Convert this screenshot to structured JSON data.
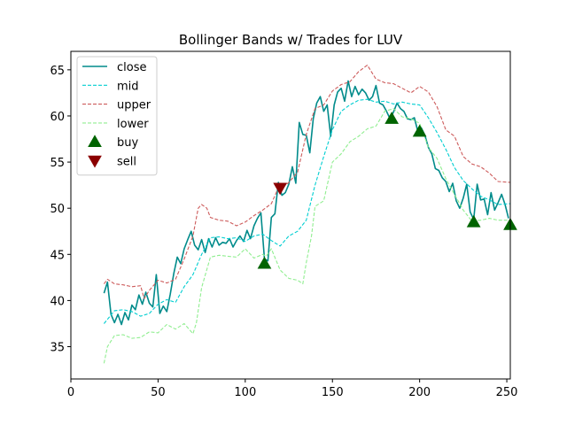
{
  "chart_data": {
    "type": "line",
    "title": "Bollinger Bands w/ Trades for LUV",
    "xlabel": "",
    "ylabel": "",
    "xlim": [
      0,
      252
    ],
    "ylim": [
      31.5,
      67
    ],
    "xticks": [
      0,
      50,
      100,
      150,
      200,
      250
    ],
    "yticks": [
      35,
      40,
      45,
      50,
      55,
      60,
      65
    ],
    "grid": false,
    "legend_position": "top-left",
    "series": [
      {
        "name": "close",
        "color": "#008b8b",
        "style": "solid",
        "x": [
          19,
          21,
          23,
          25,
          27,
          29,
          31,
          33,
          35,
          37,
          39,
          41,
          43,
          45,
          47,
          49,
          51,
          53,
          55,
          57,
          59,
          61,
          63,
          65,
          67,
          69,
          71,
          73,
          75,
          77,
          79,
          81,
          83,
          85,
          87,
          89,
          91,
          93,
          95,
          97,
          99,
          101,
          103,
          105,
          107,
          109,
          111,
          113,
          115,
          117,
          119,
          121,
          123,
          125,
          127,
          129,
          131,
          133,
          135,
          137,
          139,
          141,
          143,
          145,
          147,
          149,
          151,
          153,
          155,
          157,
          159,
          161,
          163,
          165,
          167,
          169,
          171,
          173,
          175,
          177,
          179,
          181,
          183,
          185,
          187,
          189,
          191,
          193,
          195,
          197,
          199,
          201,
          203,
          205,
          207,
          209,
          211,
          213,
          215,
          217,
          219,
          221,
          223,
          225,
          227,
          229,
          231,
          233,
          235,
          237,
          239,
          241,
          243,
          245,
          247,
          249,
          251
        ],
        "values": [
          40.8,
          42.0,
          38.5,
          37.6,
          38.5,
          37.4,
          38.7,
          37.9,
          39.5,
          39.0,
          40.6,
          39.6,
          40.9,
          39.7,
          39.3,
          42.8,
          38.6,
          39.4,
          38.8,
          40.7,
          42.9,
          44.7,
          44.0,
          45.6,
          46.6,
          47.5,
          46.0,
          45.5,
          46.6,
          45.2,
          46.7,
          45.8,
          46.8,
          46.0,
          46.3,
          46.2,
          46.7,
          45.8,
          46.5,
          47.0,
          46.4,
          47.6,
          46.7,
          48.1,
          48.9,
          49.5,
          44.5,
          44.3,
          49.0,
          49.4,
          52.8,
          51.4,
          51.7,
          52.6,
          54.5,
          52.7,
          59.3,
          58.0,
          57.9,
          56.0,
          59.7,
          61.4,
          62.1,
          60.5,
          61.2,
          57.8,
          61.2,
          62.6,
          63.0,
          61.6,
          63.8,
          62.1,
          63.2,
          62.3,
          62.9,
          62.5,
          61.7,
          62.1,
          63.3,
          61.4,
          61.2,
          60.5,
          59.7,
          60.4,
          61.4,
          60.8,
          60.5,
          59.7,
          59.6,
          59.8,
          58.3,
          58.7,
          57.9,
          56.6,
          55.9,
          54.3,
          54.1,
          53.3,
          52.9,
          51.8,
          52.7,
          50.8,
          50.0,
          51.1,
          52.6,
          49.6,
          48.8,
          52.6,
          50.9,
          51.0,
          49.3,
          51.7,
          49.8,
          50.6,
          51.5,
          50.4,
          48.9
        ]
      },
      {
        "name": "mid",
        "color": "#00ced1",
        "style": "dashed",
        "x": [
          19,
          25,
          30,
          35,
          40,
          45,
          50,
          55,
          60,
          65,
          70,
          75,
          80,
          85,
          90,
          95,
          100,
          105,
          110,
          115,
          120,
          125,
          130,
          135,
          140,
          145,
          150,
          155,
          160,
          165,
          170,
          175,
          180,
          185,
          190,
          195,
          200,
          205,
          210,
          215,
          220,
          225,
          230,
          235,
          240,
          245,
          252
        ],
        "values": [
          37.5,
          38.9,
          39.0,
          38.8,
          38.3,
          38.6,
          39.6,
          40.1,
          39.8,
          41.5,
          42.8,
          45.0,
          46.8,
          46.9,
          46.7,
          46.8,
          46.4,
          47.0,
          47.2,
          46.5,
          45.9,
          47.0,
          47.5,
          48.7,
          52.5,
          55.6,
          58.5,
          60.5,
          61.2,
          61.7,
          61.8,
          61.5,
          61.6,
          61.3,
          61.5,
          61.3,
          61.2,
          59.8,
          58.2,
          56.4,
          54.4,
          53.0,
          52.1,
          51.3,
          50.9,
          50.4,
          50.5
        ]
      },
      {
        "name": "upper",
        "color": "#cd5c5c",
        "style": "dashed",
        "x": [
          19,
          21,
          25,
          30,
          35,
          40,
          42,
          45,
          50,
          55,
          60,
          65,
          70,
          73,
          75,
          78,
          80,
          85,
          90,
          95,
          100,
          105,
          110,
          115,
          118,
          120,
          125,
          130,
          135,
          140,
          145,
          150,
          155,
          160,
          165,
          170,
          175,
          180,
          185,
          190,
          195,
          200,
          205,
          210,
          215,
          220,
          225,
          230,
          235,
          240,
          245,
          252
        ],
        "values": [
          41.8,
          42.3,
          41.8,
          41.7,
          41.5,
          41.6,
          40.2,
          41.1,
          42.2,
          41.9,
          42.3,
          44.5,
          47.0,
          50.0,
          50.4,
          50.0,
          49.0,
          48.7,
          48.6,
          48.1,
          48.5,
          49.2,
          49.8,
          50.5,
          51.8,
          52.0,
          52.8,
          53.9,
          58.0,
          60.8,
          61.2,
          62.7,
          63.4,
          63.7,
          64.8,
          65.5,
          64.0,
          63.6,
          63.5,
          63.0,
          62.5,
          63.2,
          62.6,
          61.0,
          58.5,
          57.8,
          55.6,
          54.8,
          54.5,
          53.8,
          52.9,
          52.8
        ]
      },
      {
        "name": "lower",
        "color": "#90ee90",
        "style": "dashed",
        "x": [
          19,
          21,
          25,
          30,
          35,
          40,
          45,
          50,
          55,
          60,
          65,
          70,
          72,
          75,
          80,
          85,
          90,
          95,
          100,
          105,
          110,
          112,
          115,
          120,
          125,
          130,
          133,
          135,
          138,
          140,
          145,
          150,
          155,
          160,
          165,
          170,
          175,
          180,
          185,
          190,
          195,
          200,
          205,
          210,
          215,
          220,
          225,
          230,
          235,
          240,
          245,
          252
        ],
        "values": [
          33.2,
          35.0,
          36.2,
          36.3,
          35.9,
          36.0,
          36.6,
          36.5,
          37.4,
          36.9,
          37.5,
          36.4,
          37.6,
          41.4,
          44.7,
          44.9,
          44.8,
          44.7,
          45.6,
          44.6,
          45.0,
          44.8,
          45.6,
          43.3,
          42.4,
          42.2,
          41.8,
          44.1,
          47.0,
          50.2,
          50.8,
          55.0,
          55.9,
          57.2,
          57.8,
          58.6,
          58.9,
          60.5,
          60.8,
          59.9,
          59.7,
          59.2,
          56.6,
          55.4,
          53.2,
          51.5,
          49.8,
          48.6,
          48.7,
          48.9,
          48.7,
          48.7
        ]
      }
    ],
    "markers": [
      {
        "name": "buy",
        "color": "#006400",
        "shape": "triangle-up",
        "x": [
          111,
          184,
          200,
          231,
          252
        ],
        "values": [
          44.0,
          59.7,
          58.3,
          48.5,
          48.2
        ]
      },
      {
        "name": "sell",
        "color": "#8b0000",
        "shape": "triangle-down",
        "x": [
          120
        ],
        "values": [
          52.2
        ]
      }
    ]
  }
}
